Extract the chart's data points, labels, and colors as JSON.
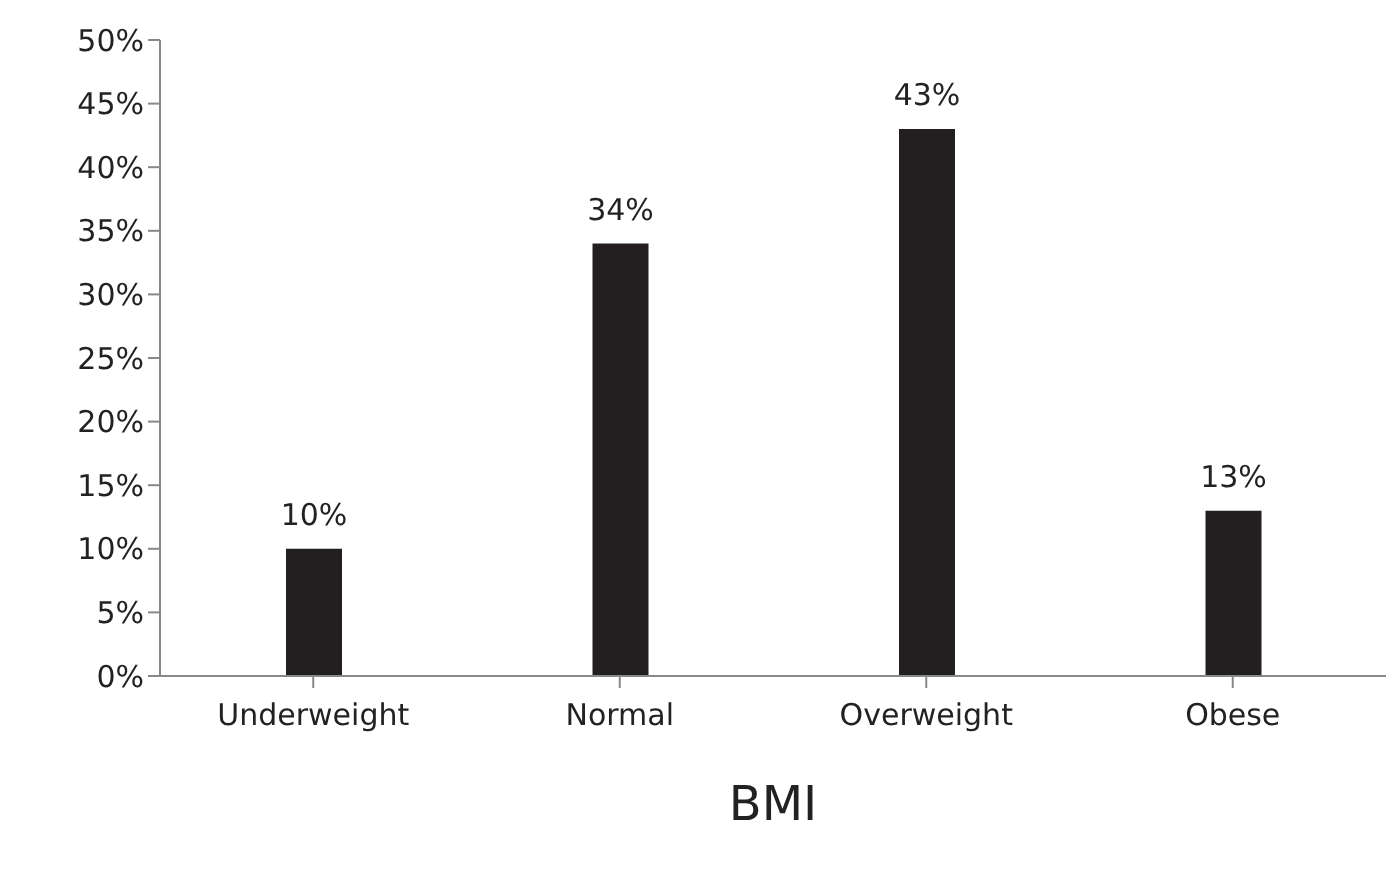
{
  "chart_data": {
    "type": "bar",
    "xlabel": "BMI",
    "categories": [
      "Underweight",
      "Normal",
      "Overweight",
      "Obese"
    ],
    "values": [
      10,
      34,
      43,
      13
    ],
    "value_labels": [
      "10%",
      "34%",
      "43%",
      "13%"
    ],
    "color": "#231f20",
    "ylim": [
      0,
      50
    ],
    "yticks": [
      {
        "value": 0,
        "label": "0%"
      },
      {
        "value": 5,
        "label": "5%"
      },
      {
        "value": 10,
        "label": "10%"
      },
      {
        "value": 15,
        "label": "15%"
      },
      {
        "value": 20,
        "label": "20%"
      },
      {
        "value": 25,
        "label": "25%"
      },
      {
        "value": 30,
        "label": "30%"
      },
      {
        "value": 35,
        "label": "35%"
      },
      {
        "value": 40,
        "label": "40%"
      },
      {
        "value": 45,
        "label": "45%"
      },
      {
        "value": 50,
        "label": "50%"
      }
    ],
    "grid": false,
    "legend": false
  }
}
